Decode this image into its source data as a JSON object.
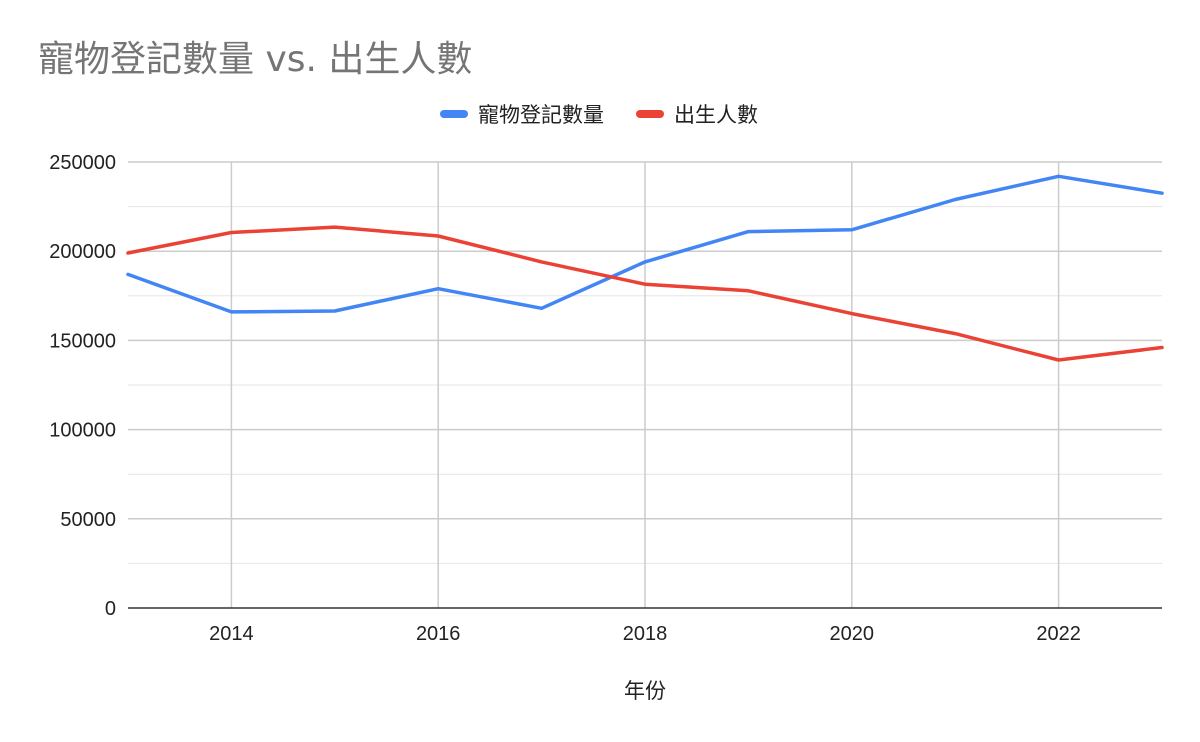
{
  "chart_data": {
    "type": "line",
    "title": "寵物登記數量 vs. 出生人數",
    "xlabel": "年份",
    "ylabel": "",
    "x": [
      2013,
      2014,
      2015,
      2016,
      2017,
      2018,
      2019,
      2020,
      2021,
      2022,
      2023
    ],
    "xlim": [
      2013,
      2023
    ],
    "xticks": [
      "2014",
      "2016",
      "2018",
      "2020",
      "2022"
    ],
    "ylim": [
      0,
      250000
    ],
    "yticks": [
      "0",
      "50000",
      "100000",
      "150000",
      "200000",
      "250000"
    ],
    "grid": true,
    "legend_position": "top-center",
    "series": [
      {
        "name": "寵物登記數量",
        "color": "#4285f4",
        "values": [
          187000,
          166000,
          166500,
          179000,
          168000,
          194000,
          211000,
          212000,
          229000,
          242000,
          232500
        ]
      },
      {
        "name": "出生人數",
        "color": "#ea4335",
        "values": [
          199000,
          210500,
          213500,
          208500,
          194000,
          181500,
          177800,
          165000,
          153800,
          139000,
          146000
        ]
      }
    ]
  }
}
